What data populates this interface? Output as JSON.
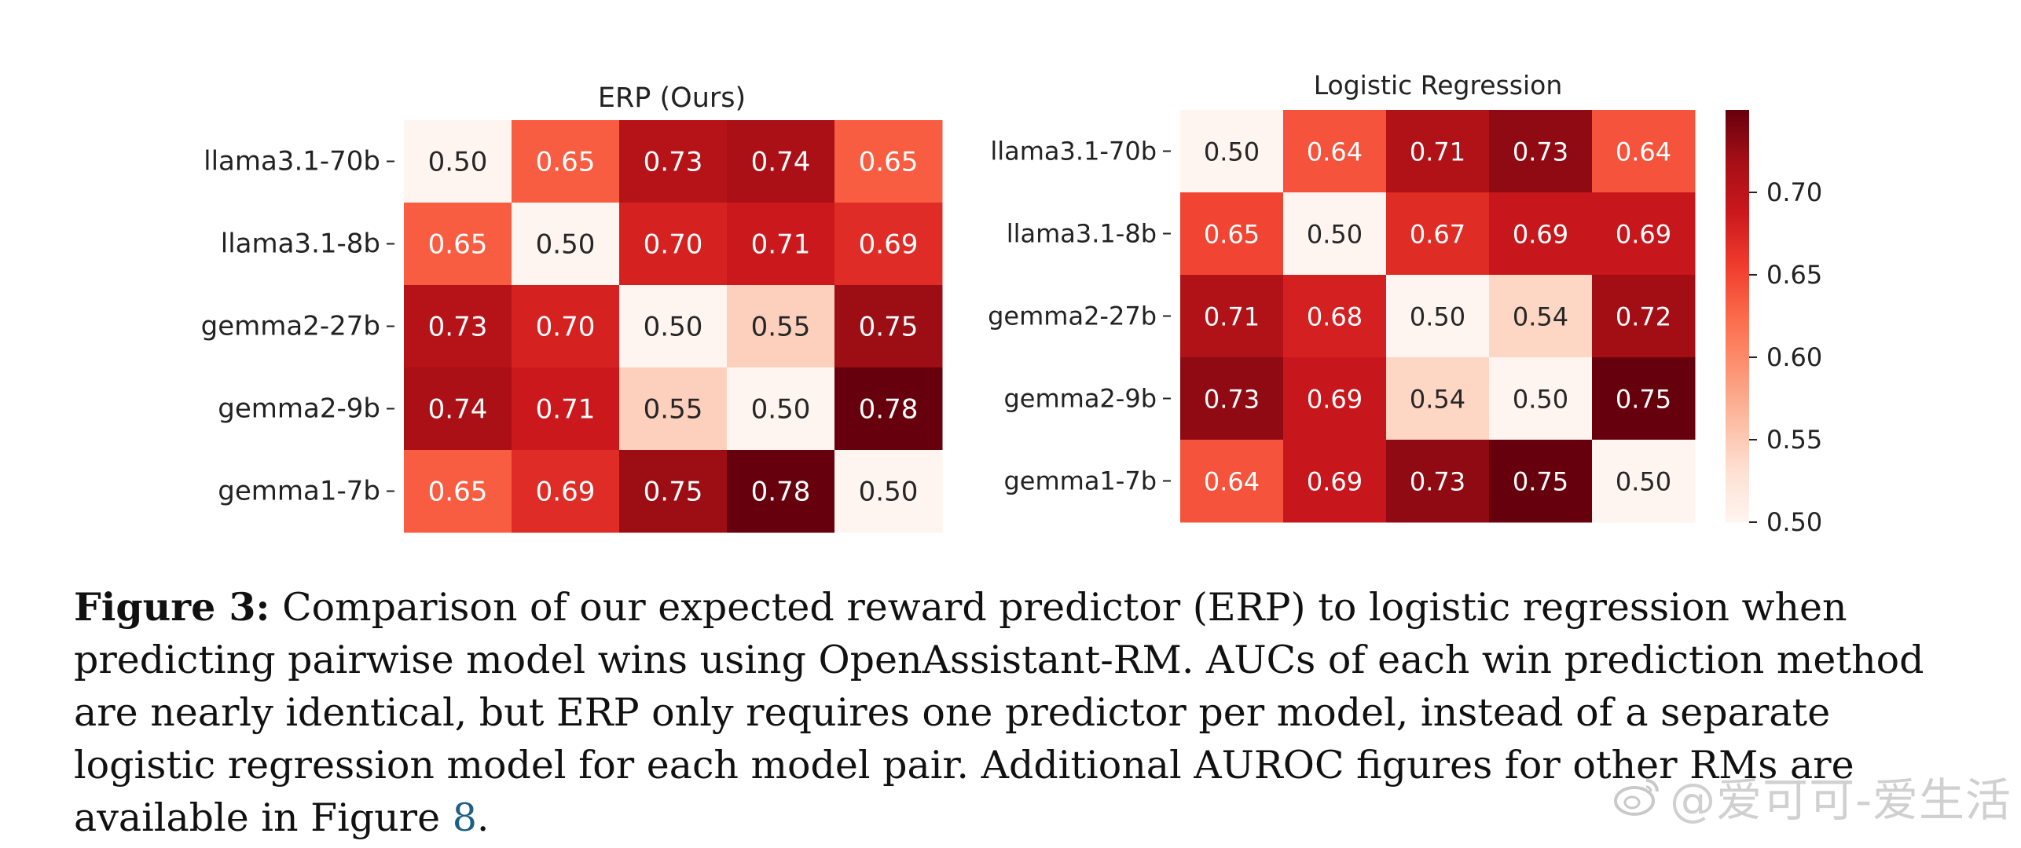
{
  "chart_data": [
    {
      "type": "heatmap",
      "title": "ERP (Ours)",
      "row_labels": [
        "llama3.1-70b",
        "llama3.1-8b",
        "gemma2-27b",
        "gemma2-9b",
        "gemma1-7b"
      ],
      "values": [
        [
          0.5,
          0.65,
          0.73,
          0.74,
          0.65
        ],
        [
          0.65,
          0.5,
          0.7,
          0.71,
          0.69
        ],
        [
          0.73,
          0.7,
          0.5,
          0.55,
          0.75
        ],
        [
          0.74,
          0.71,
          0.55,
          0.5,
          0.78
        ],
        [
          0.65,
          0.69,
          0.75,
          0.78,
          0.5
        ]
      ],
      "value_range": [
        0.5,
        0.78
      ],
      "colormap": "Reds",
      "colorbar": false
    },
    {
      "type": "heatmap",
      "title": "Logistic Regression",
      "row_labels": [
        "llama3.1-70b",
        "llama3.1-8b",
        "gemma2-27b",
        "gemma2-9b",
        "gemma1-7b"
      ],
      "values": [
        [
          0.5,
          0.64,
          0.71,
          0.73,
          0.64
        ],
        [
          0.65,
          0.5,
          0.67,
          0.69,
          0.69
        ],
        [
          0.71,
          0.68,
          0.5,
          0.54,
          0.72
        ],
        [
          0.73,
          0.69,
          0.54,
          0.5,
          0.75
        ],
        [
          0.64,
          0.69,
          0.73,
          0.75,
          0.5
        ]
      ],
      "value_range": [
        0.5,
        0.75
      ],
      "colormap": "Reds",
      "colorbar": true,
      "colorbar_ticks": [
        "0.70",
        "0.65",
        "0.60",
        "0.55",
        "0.50"
      ]
    }
  ],
  "caption": {
    "label": "Figure 3:",
    "text": " Comparison of our expected reward predictor (ERP) to logistic regression when predicting pairwise model wins using OpenAssistant-RM. AUCs of each win prediction method are nearly identical, but ERP only requires one predictor per model, instead of a separate logistic regression model for each model pair. Additional AUROC figures for other RMs are available in Figure ",
    "ref": "8",
    "end": "."
  },
  "watermark": {
    "text": "@爱可可-爱生活",
    "icon": "weibo-icon"
  }
}
